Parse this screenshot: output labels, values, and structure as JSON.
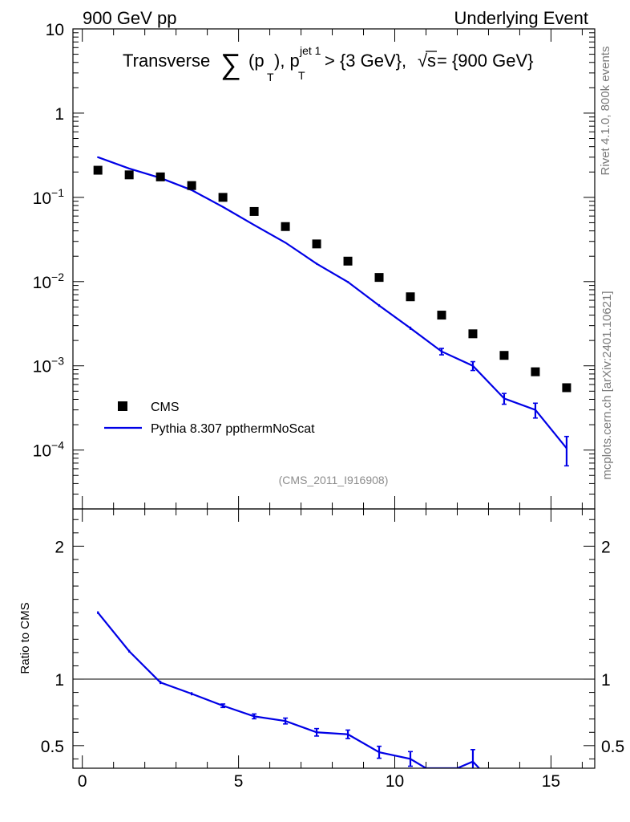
{
  "header": {
    "left": "900 GeV pp",
    "right": "Underlying Event"
  },
  "title": {
    "pre": "Transverse ",
    "sum": "∑",
    "p": "(p",
    "sub_t": "T",
    "close": "), p",
    "sup_jet": "jet 1",
    "sub_t2": "T",
    "cond": " > {3 GeV}, ",
    "sqrt": "√",
    "s": "s",
    "energy": " = {900 GeV}"
  },
  "side_labels": {
    "rivet": "Rivet 4.1.0,  800k events",
    "mcplots": "mcplots.cern.ch [arXiv:2401.10621]"
  },
  "analysis_id": "(CMS_2011_I916908)",
  "legend": {
    "data_label": "CMS",
    "mc_label": "Pythia 8.307 ppthermNoScat"
  },
  "colors": {
    "data": "#000000",
    "mc": "#0000e6",
    "frame": "#000000",
    "reference": "#000000"
  },
  "chart_data": [
    {
      "type": "scatter",
      "name": "main",
      "yscale": "log",
      "xlim": [
        -0.3,
        16.4
      ],
      "ylim": [
        2e-05,
        10
      ],
      "y_tick_labels": [
        {
          "value": 10,
          "base": "10",
          "exp": ""
        },
        {
          "value": 1,
          "base": "1",
          "exp": ""
        },
        {
          "value": 0.1,
          "base": "10",
          "exp": "−1"
        },
        {
          "value": 0.01,
          "base": "10",
          "exp": "−2"
        },
        {
          "value": 0.001,
          "base": "10",
          "exp": "−3"
        },
        {
          "value": 0.0001,
          "base": "10",
          "exp": "−4"
        }
      ],
      "series": [
        {
          "name": "CMS",
          "style": "markers",
          "x": [
            0.5,
            1.5,
            2.5,
            3.5,
            4.5,
            5.5,
            6.5,
            7.5,
            8.5,
            9.5,
            10.5,
            11.5,
            12.5,
            13.5,
            14.5,
            15.5
          ],
          "y": [
            0.21,
            0.185,
            0.175,
            0.138,
            0.1,
            0.068,
            0.045,
            0.028,
            0.0175,
            0.0112,
            0.0066,
            0.004,
            0.0024,
            0.00133,
            0.00085,
            0.00055
          ]
        },
        {
          "name": "Pythia 8.307 ppthermNoScat",
          "style": "line",
          "x": [
            0.5,
            1.5,
            2.5,
            3.5,
            4.5,
            5.5,
            6.5,
            7.5,
            8.5,
            9.5,
            10.5,
            11.5,
            12.5,
            13.5,
            14.5,
            15.5
          ],
          "y": [
            0.3,
            0.22,
            0.17,
            0.122,
            0.077,
            0.047,
            0.029,
            0.0163,
            0.0099,
            0.0052,
            0.0028,
            0.00148,
            0.001,
            0.00041,
            0.0003,
            0.000105
          ],
          "err": [
            0.005,
            0.004,
            0.003,
            0.002,
            0.0012,
            0.0008,
            0.0005,
            0.0004,
            0.00025,
            0.00018,
            0.00012,
            0.00013,
            0.00012,
            6e-05,
            6e-05,
            4e-05
          ]
        }
      ]
    },
    {
      "type": "line",
      "name": "ratio",
      "ylabel": "Ratio to CMS",
      "xlim": [
        -0.3,
        16.4
      ],
      "ylim": [
        0.33,
        2.28
      ],
      "reference": 1,
      "y_ticks": [
        0.5,
        1,
        2
      ],
      "y_tick_labels": [
        "0.5",
        "1",
        "2"
      ],
      "x_ticks": [
        0,
        5,
        10,
        15
      ],
      "x_tick_labels": [
        "0",
        "5",
        "10",
        "15"
      ],
      "series": [
        {
          "name": "Pythia 8.307 ppthermNoScat",
          "x": [
            0.5,
            1.5,
            2.5,
            3.5,
            4.5,
            5.5,
            6.5,
            7.5,
            8.5,
            9.5,
            10.5,
            11.0,
            12.0,
            12.5,
            12.7
          ],
          "y": [
            1.5,
            1.21,
            0.975,
            0.89,
            0.8,
            0.72,
            0.685,
            0.6,
            0.585,
            0.45,
            0.4,
            0.33,
            0.33,
            0.38,
            0.33
          ],
          "err": [
            0.01,
            0.01,
            0.012,
            0.012,
            0.013,
            0.018,
            0.022,
            0.028,
            0.032,
            0.045,
            0.055,
            0.0,
            0.0,
            0.09,
            0.0
          ]
        }
      ]
    }
  ]
}
